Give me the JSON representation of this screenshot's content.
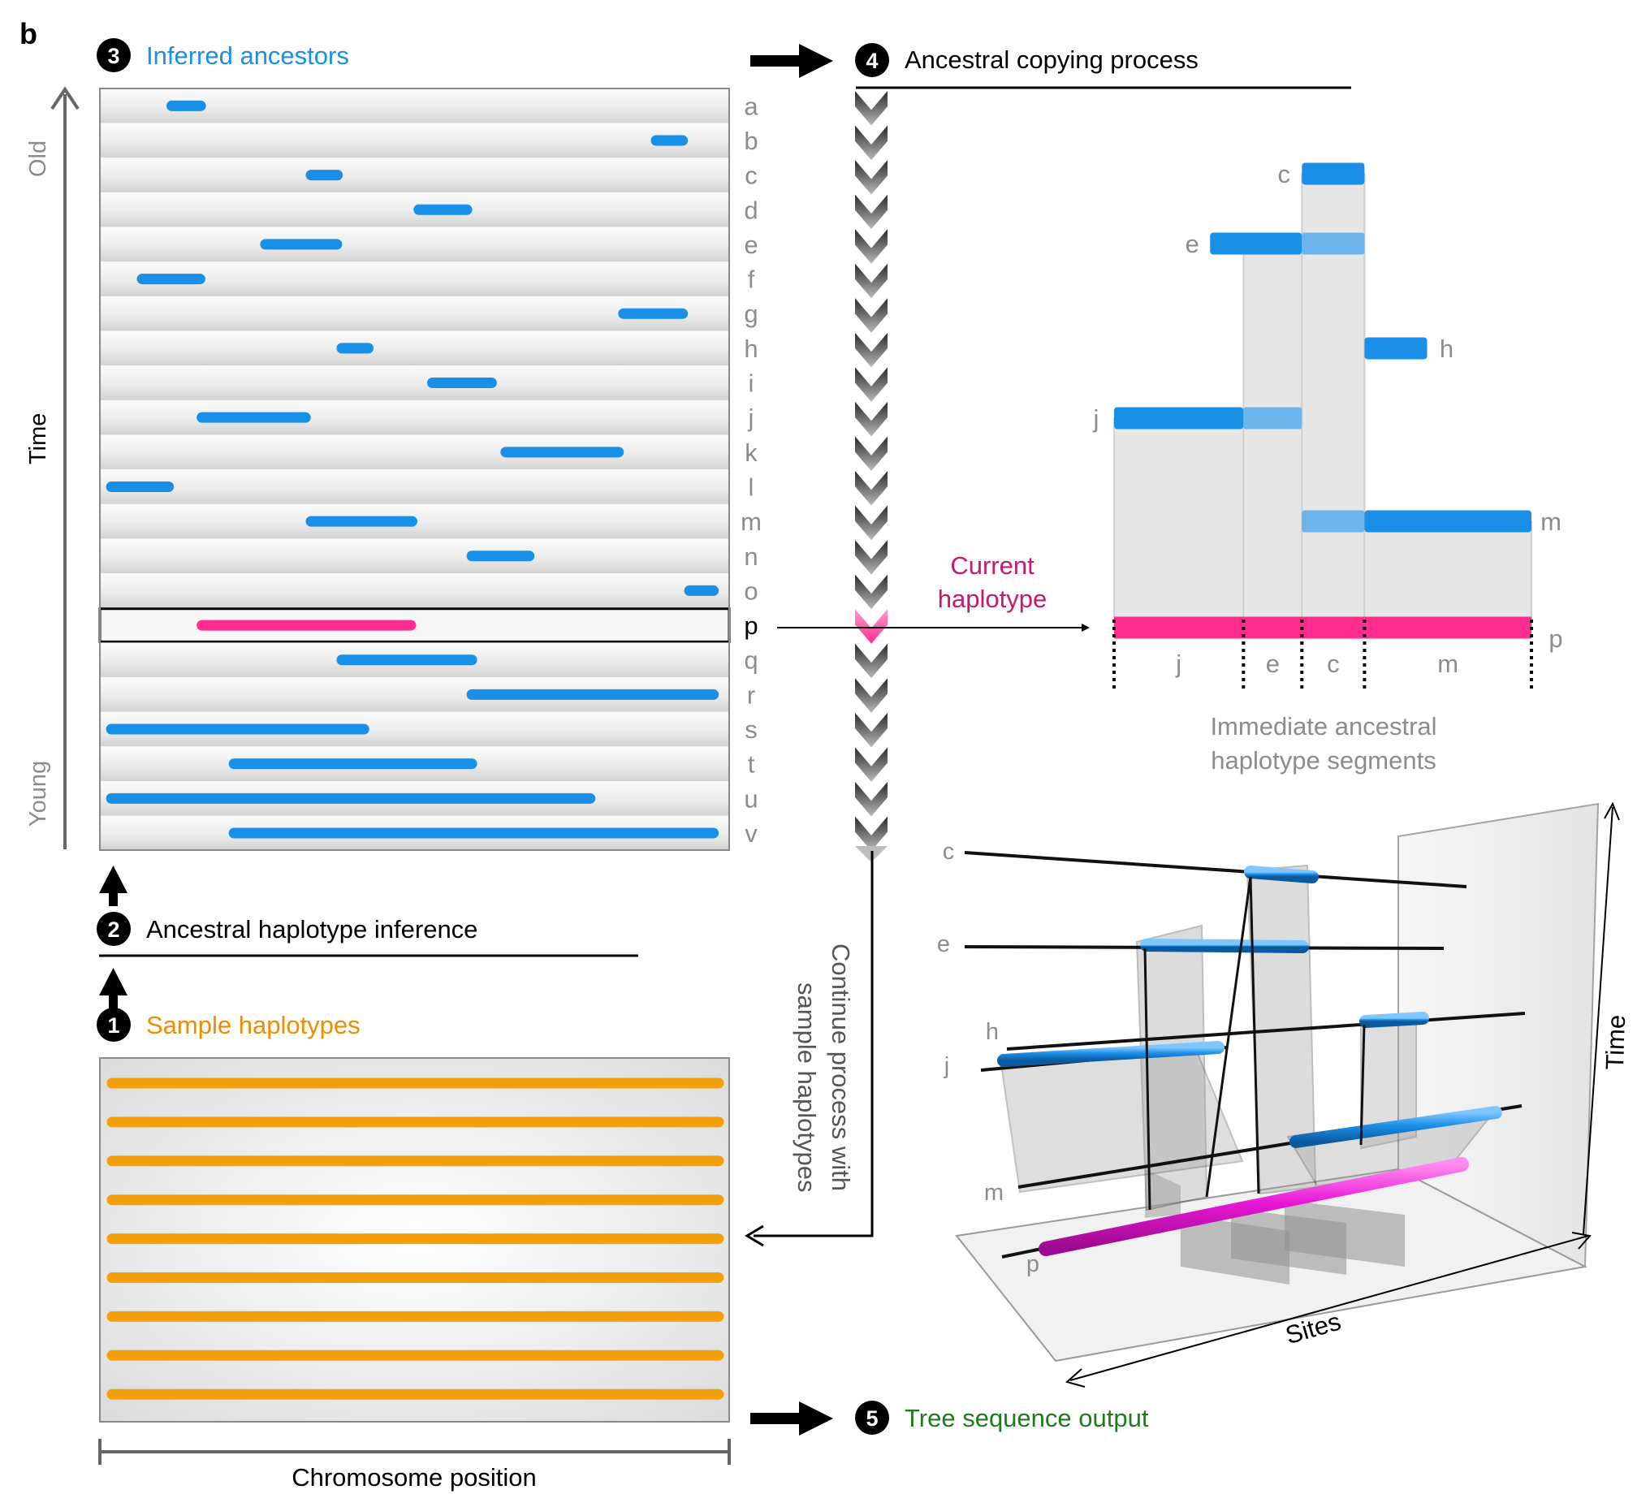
{
  "panel_letter": "b",
  "steps": {
    "s1": {
      "num": "1",
      "label": "Sample haplotypes"
    },
    "s2": {
      "num": "2",
      "label": "Ancestral haplotype inference"
    },
    "s3": {
      "num": "3",
      "label": "Inferred ancestors"
    },
    "s4": {
      "num": "4",
      "label": "Ancestral copying process"
    },
    "s5": {
      "num": "5",
      "label": "Tree sequence output"
    }
  },
  "time_axis": {
    "label": "Time",
    "old": "Old",
    "young": "Young"
  },
  "chromosome_label": "Chromosome position",
  "current_haplotype": {
    "line1": "Current",
    "line2": "haplotype"
  },
  "segments_caption": {
    "line1": "Immediate ancestral",
    "line2": "haplotype segments"
  },
  "continue_label": {
    "line1": "Continue process with",
    "line2": "sample haplotypes"
  },
  "view3d": {
    "sites": "Sites",
    "time": "Time"
  },
  "ancestors": [
    {
      "id": "a",
      "start": 0.106,
      "end": 0.153
    },
    {
      "id": "b",
      "start": 0.892,
      "end": 0.935
    },
    {
      "id": "c",
      "start": 0.332,
      "end": 0.375
    },
    {
      "id": "d",
      "start": 0.507,
      "end": 0.585
    },
    {
      "id": "e",
      "start": 0.258,
      "end": 0.374
    },
    {
      "id": "f",
      "start": 0.058,
      "end": 0.152
    },
    {
      "id": "g",
      "start": 0.839,
      "end": 0.935
    },
    {
      "id": "h",
      "start": 0.382,
      "end": 0.425
    },
    {
      "id": "i",
      "start": 0.529,
      "end": 0.625
    },
    {
      "id": "j",
      "start": 0.155,
      "end": 0.323
    },
    {
      "id": "k",
      "start": 0.648,
      "end": 0.831
    },
    {
      "id": "l",
      "start": 0.008,
      "end": 0.101
    },
    {
      "id": "m",
      "start": 0.332,
      "end": 0.496
    },
    {
      "id": "n",
      "start": 0.593,
      "end": 0.686
    },
    {
      "id": "o",
      "start": 0.946,
      "end": 0.985
    },
    {
      "id": "p",
      "start": 0.155,
      "end": 0.494,
      "current": true
    },
    {
      "id": "q",
      "start": 0.382,
      "end": 0.593
    },
    {
      "id": "r",
      "start": 0.593,
      "end": 0.985
    },
    {
      "id": "s",
      "start": 0.008,
      "end": 0.418
    },
    {
      "id": "t",
      "start": 0.207,
      "end": 0.593
    },
    {
      "id": "u",
      "start": 0.008,
      "end": 0.785
    },
    {
      "id": "v",
      "start": 0.207,
      "end": 0.985
    }
  ],
  "sample_count": 9,
  "copying": {
    "ancestors": [
      {
        "id": "c",
        "start": 0.45,
        "end": 0.6
      },
      {
        "id": "e",
        "start": 0.23,
        "end": 0.6,
        "faded_from": 0.45
      },
      {
        "id": "h",
        "start": 0.6,
        "end": 0.75
      },
      {
        "id": "j",
        "start": 0.0,
        "end": 0.45,
        "faded_from": 0.31
      },
      {
        "id": "m",
        "start": 0.45,
        "end": 1.0,
        "faded_to": 0.6
      }
    ],
    "current": {
      "id": "p"
    },
    "segments": [
      {
        "label": "j",
        "start": 0.0,
        "end": 0.31
      },
      {
        "label": "e",
        "start": 0.31,
        "end": 0.45
      },
      {
        "label": "c",
        "start": 0.45,
        "end": 0.6
      },
      {
        "label": "m",
        "start": 0.6,
        "end": 1.0
      }
    ]
  },
  "colors": {
    "ancestor": "#1a8fe6",
    "ancestor_faded": "#6db4ec",
    "current": "#ff2d8f",
    "current_3d": "#e817d6",
    "sample": "#f4a00c",
    "step3_text": "#1a8fe6",
    "step1_text": "#f08c00",
    "step5_text": "#1f7a1f",
    "current_label": "#c8176e",
    "grey_text": "#8c8c8c"
  }
}
